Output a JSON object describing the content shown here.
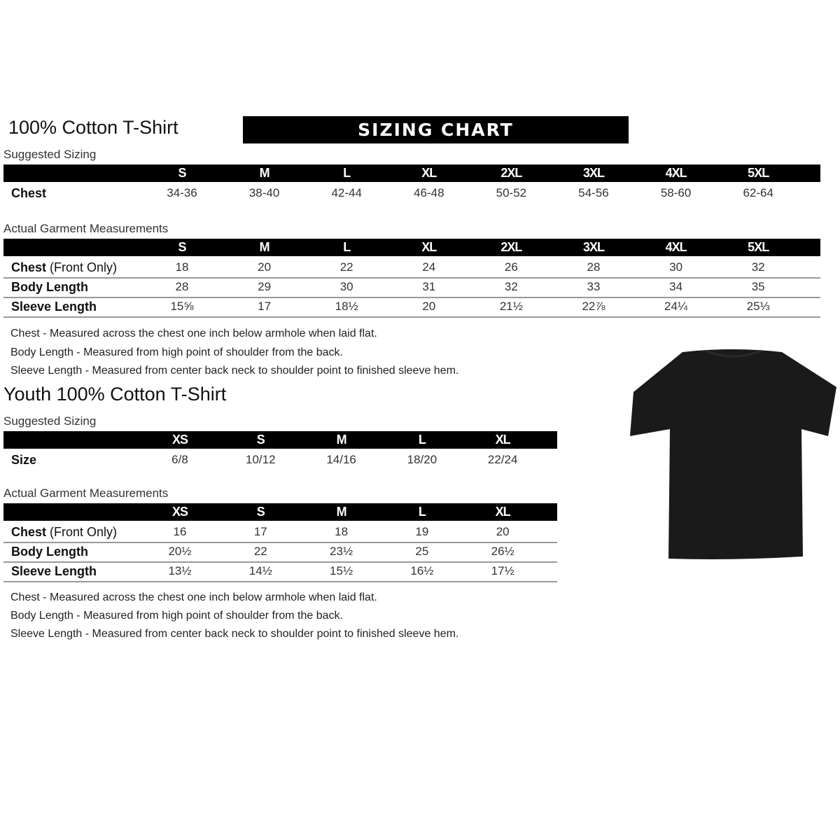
{
  "adult": {
    "title": "100% Cotton T-Shirt",
    "banner": "SIZING CHART",
    "suggested": {
      "label": "Suggested Sizing",
      "sizes": [
        "S",
        "M",
        "L",
        "XL",
        "2XL",
        "3XL",
        "4XL",
        "5XL"
      ],
      "rows": [
        {
          "label": "Chest",
          "values": [
            "34-36",
            "38-40",
            "42-44",
            "46-48",
            "50-52",
            "54-56",
            "58-60",
            "62-64"
          ]
        }
      ]
    },
    "actual": {
      "label": "Actual Garment Measurements",
      "sizes": [
        "S",
        "M",
        "L",
        "XL",
        "2XL",
        "3XL",
        "4XL",
        "5XL"
      ],
      "rows": [
        {
          "label": "Chest",
          "label_suffix": " (Front Only)",
          "values": [
            "18",
            "20",
            "22",
            "24",
            "26",
            "28",
            "30",
            "32"
          ]
        },
        {
          "label": "Body Length",
          "values": [
            "28",
            "29",
            "30",
            "31",
            "32",
            "33",
            "34",
            "35"
          ]
        },
        {
          "label": "Sleeve Length",
          "values": [
            "15⅝",
            "17",
            "18½",
            "20",
            "21½",
            "22⅞",
            "24¼",
            "25⅓"
          ]
        }
      ]
    },
    "notes": [
      "Chest - Measured across the chest one inch below armhole when laid flat.",
      "Body Length - Measured from high point of shoulder from the back.",
      "Sleeve Length - Measured from center back neck to shoulder point to finished sleeve hem."
    ]
  },
  "youth": {
    "title": "Youth 100% Cotton T-Shirt",
    "suggested": {
      "label": "Suggested Sizing",
      "sizes": [
        "XS",
        "S",
        "M",
        "L",
        "XL"
      ],
      "rows": [
        {
          "label": "Size",
          "values": [
            "6/8",
            "10/12",
            "14/16",
            "18/20",
            "22/24"
          ]
        }
      ]
    },
    "actual": {
      "label": "Actual Garment Measurements",
      "sizes": [
        "XS",
        "S",
        "M",
        "L",
        "XL"
      ],
      "rows": [
        {
          "label": "Chest",
          "label_suffix": " (Front Only)",
          "values": [
            "16",
            "17",
            "18",
            "19",
            "20"
          ]
        },
        {
          "label": "Body Length",
          "values": [
            "20½",
            "22",
            "23½",
            "25",
            "26½"
          ]
        },
        {
          "label": "Sleeve Length",
          "values": [
            "13½",
            "14½",
            "15½",
            "16½",
            "17½"
          ]
        }
      ]
    },
    "notes": [
      "Chest - Measured across the chest one inch below armhole when laid flat.",
      "Body Length - Measured from high point of shoulder from the back.",
      "Sleeve Length - Measured from center back neck to shoulder point to finished sleeve hem."
    ]
  },
  "colors": {
    "header_bg": "#000000",
    "header_text": "#ffffff",
    "shirt": "#1a1a1a"
  },
  "image": {
    "icon": "black-tshirt"
  }
}
